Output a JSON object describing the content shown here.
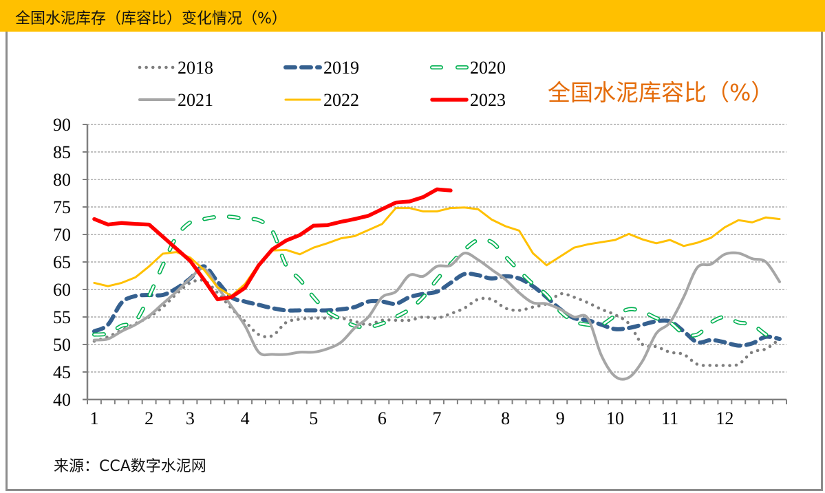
{
  "header": {
    "title": "全国水泥库存（库容比）变化情况（%）"
  },
  "annotation": "全国水泥库容比（%）",
  "source": "来源：CCA数字水泥网",
  "colors": {
    "header_bg": "#FFC000",
    "annotation": "#E46C0A",
    "s2018": "#7F7F7F",
    "s2019": "#35608F",
    "s2020": "#00B050",
    "s2021": "#A6A6A6",
    "s2022": "#FFC000",
    "s2023": "#FF0000"
  },
  "chart_data": {
    "type": "line",
    "title": "全国水泥库存（库容比）变化情况（%）",
    "xlabel": "",
    "ylabel": "",
    "ylim": [
      40,
      90
    ],
    "yticks": [
      "40",
      "45",
      "50",
      "55",
      "60",
      "65",
      "70",
      "75",
      "80",
      "85",
      "90"
    ],
    "xtick_labels": [
      {
        "label": "1",
        "week": 0
      },
      {
        "label": "2",
        "week": 4
      },
      {
        "label": "3",
        "week": 7
      },
      {
        "label": "4",
        "week": 11
      },
      {
        "label": "5",
        "week": 16
      },
      {
        "label": "6",
        "week": 21
      },
      {
        "label": "7",
        "week": 25
      },
      {
        "label": "8",
        "week": 30
      },
      {
        "label": "9",
        "week": 34
      },
      {
        "label": "10",
        "week": 38
      },
      {
        "label": "11",
        "week": 42
      },
      {
        "label": "12",
        "week": 46
      }
    ],
    "n_points": 51,
    "grid": "horizontal-dashed",
    "legend_position": "top",
    "series": [
      {
        "name": "2018",
        "style": "dotted",
        "color": "#7F7F7F",
        "values": [
          50.6,
          51.4,
          52.6,
          53.8,
          55.0,
          56.8,
          59.2,
          61.2,
          61.6,
          59.4,
          56.6,
          54.2,
          51.8,
          51.6,
          54.0,
          54.6,
          54.8,
          54.8,
          54.8,
          54.2,
          53.6,
          54.4,
          54.4,
          54.4,
          55.0,
          54.8,
          55.6,
          56.6,
          58.2,
          58.2,
          56.6,
          56.2,
          56.8,
          57.4,
          59.2,
          58.6,
          57.6,
          56.4,
          55.4,
          53.8,
          50.0,
          49.6,
          48.6,
          48.2,
          46.4,
          46.2,
          46.2,
          46.4,
          48.6,
          49.2,
          51.0
        ]
      },
      {
        "name": "2019",
        "style": "dashed",
        "color": "#35608F",
        "values": [
          52.4,
          53.6,
          57.6,
          58.8,
          59.0,
          59.0,
          60.2,
          62.0,
          64.2,
          61.4,
          58.6,
          57.8,
          57.2,
          56.6,
          56.2,
          56.2,
          56.2,
          56.2,
          56.4,
          56.8,
          57.8,
          57.8,
          57.4,
          58.6,
          59.2,
          59.6,
          61.2,
          62.8,
          62.6,
          62.0,
          62.4,
          62.0,
          60.6,
          58.6,
          56.4,
          54.8,
          54.4,
          53.6,
          52.8,
          53.0,
          53.6,
          54.2,
          54.2,
          52.4,
          50.4,
          50.8,
          50.4,
          49.8,
          50.2,
          51.4,
          51.0
        ]
      },
      {
        "name": "2020",
        "style": "long-dash",
        "color": "#00B050",
        "values": [
          51.8,
          52.0,
          53.4,
          54.2,
          58.8,
          64.4,
          69.6,
          72.2,
          72.8,
          73.2,
          73.2,
          72.8,
          72.6,
          70.6,
          64.4,
          61.8,
          58.6,
          56.0,
          54.6,
          53.4,
          53.2,
          53.8,
          55.0,
          56.4,
          58.6,
          61.8,
          64.6,
          67.2,
          69.0,
          68.6,
          66.0,
          63.4,
          61.0,
          59.0,
          56.0,
          54.2,
          53.6,
          53.6,
          55.2,
          56.4,
          56.0,
          54.8,
          54.0,
          52.0,
          51.8,
          54.0,
          55.0,
          54.0,
          53.6,
          51.8,
          50.6
        ]
      },
      {
        "name": "2021",
        "style": "solid",
        "color": "#A6A6A6",
        "values": [
          50.8,
          51.0,
          52.4,
          53.6,
          55.2,
          57.4,
          59.6,
          62.0,
          63.8,
          60.4,
          57.0,
          53.4,
          48.6,
          48.2,
          48.2,
          48.6,
          48.6,
          49.2,
          50.4,
          53.0,
          55.0,
          58.6,
          59.6,
          62.6,
          62.4,
          64.2,
          64.4,
          66.6,
          65.4,
          63.6,
          61.8,
          59.4,
          57.6,
          57.4,
          56.4,
          55.0,
          54.8,
          48.0,
          44.2,
          44.0,
          47.0,
          52.0,
          54.0,
          58.6,
          64.0,
          64.6,
          66.4,
          66.6,
          65.6,
          65.0,
          61.4
        ]
      },
      {
        "name": "2022",
        "style": "solid-thin",
        "color": "#FFC000",
        "values": [
          61.2,
          60.6,
          61.2,
          62.2,
          64.2,
          66.5,
          66.8,
          65.8,
          63.6,
          60.4,
          58.8,
          61.0,
          64.6,
          67.1,
          67.2,
          66.4,
          67.6,
          68.4,
          69.3,
          69.7,
          70.8,
          71.9,
          74.8,
          74.8,
          74.2,
          74.2,
          74.8,
          74.9,
          74.6,
          72.7,
          71.5,
          70.7,
          66.6,
          64.4,
          66.0,
          67.6,
          68.2,
          68.6,
          69.0,
          70.1,
          69.1,
          68.4,
          69.0,
          67.9,
          68.5,
          69.4,
          71.3,
          72.6,
          72.2,
          73.1,
          72.8
        ]
      },
      {
        "name": "2023",
        "style": "solid-thick",
        "color": "#FF0000",
        "values": [
          72.8,
          71.8,
          72.1,
          71.9,
          71.8,
          69.6,
          67.4,
          65.2,
          61.8,
          58.2,
          58.6,
          60.3,
          64.4,
          67.3,
          68.9,
          69.9,
          71.6,
          71.7,
          72.3,
          72.8,
          73.4,
          74.6,
          75.8,
          76.0,
          76.8,
          78.2,
          78.0
        ]
      }
    ]
  }
}
